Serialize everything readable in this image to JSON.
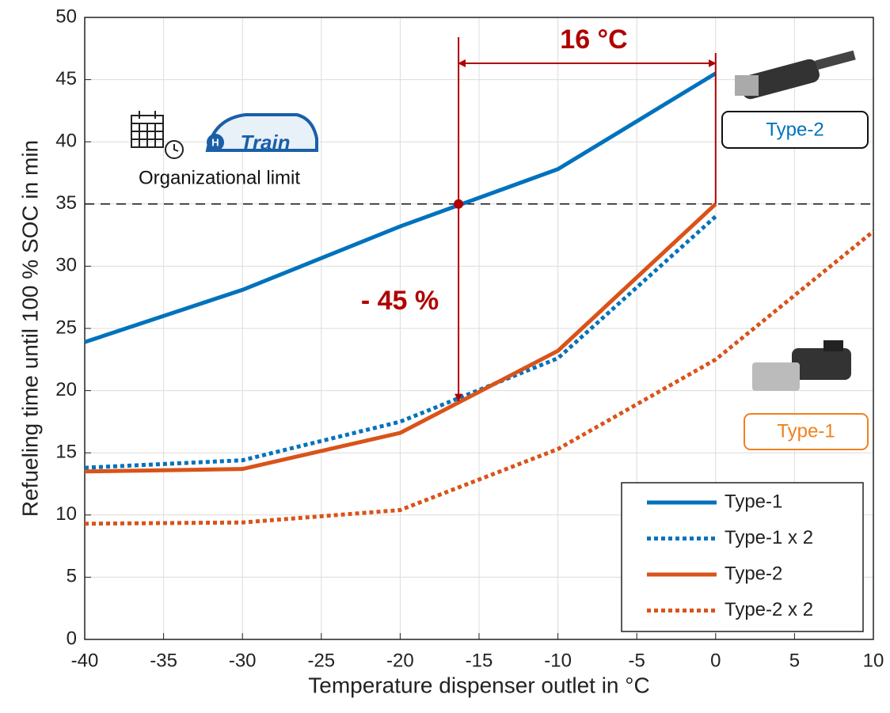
{
  "chart_data": {
    "type": "line",
    "x_label": "Temperature dispenser outlet in °C",
    "y_label": "Refueling time until 100 % SOC in min",
    "x": [
      -40,
      -30,
      -20,
      -10,
      0,
      10
    ],
    "series": [
      {
        "name": "Type-1",
        "color": "#0072BD",
        "style": "solid",
        "values": [
          23.9,
          28.1,
          33.2,
          37.8,
          45.5,
          null
        ]
      },
      {
        "name": "Type-1 x 2",
        "color": "#0072BD",
        "style": "dotted",
        "values": [
          13.8,
          14.4,
          17.5,
          22.6,
          34.0,
          null
        ]
      },
      {
        "name": "Type-2",
        "color": "#D95319",
        "style": "solid",
        "values": [
          13.5,
          13.7,
          16.6,
          23.2,
          35.0,
          null
        ]
      },
      {
        "name": "Type-2 x 2",
        "color": "#D95319",
        "style": "dotted",
        "values": [
          9.3,
          9.4,
          10.4,
          15.3,
          22.5,
          32.8
        ]
      }
    ],
    "xlim": [
      -40,
      10
    ],
    "xticks": [
      -40,
      -35,
      -30,
      -25,
      -20,
      -15,
      -10,
      -5,
      0,
      5,
      10
    ],
    "ylim": [
      0,
      50
    ],
    "yticks": [
      0,
      5,
      10,
      15,
      20,
      25,
      30,
      35,
      40,
      45,
      50
    ],
    "grid": true,
    "legend": "lower right",
    "limit": {
      "label": "Organizational limit",
      "value": 35
    },
    "crossing_x": -16.3,
    "annotation_color": "#B00000",
    "temperature_gap_label": "16 °C",
    "time_reduction_label": "- 45 %",
    "train_logo": "Train",
    "connector_labels": [
      {
        "text": "Type-2",
        "color": "#0072BD"
      },
      {
        "text": "Type-1",
        "color": "#F08020"
      }
    ]
  }
}
